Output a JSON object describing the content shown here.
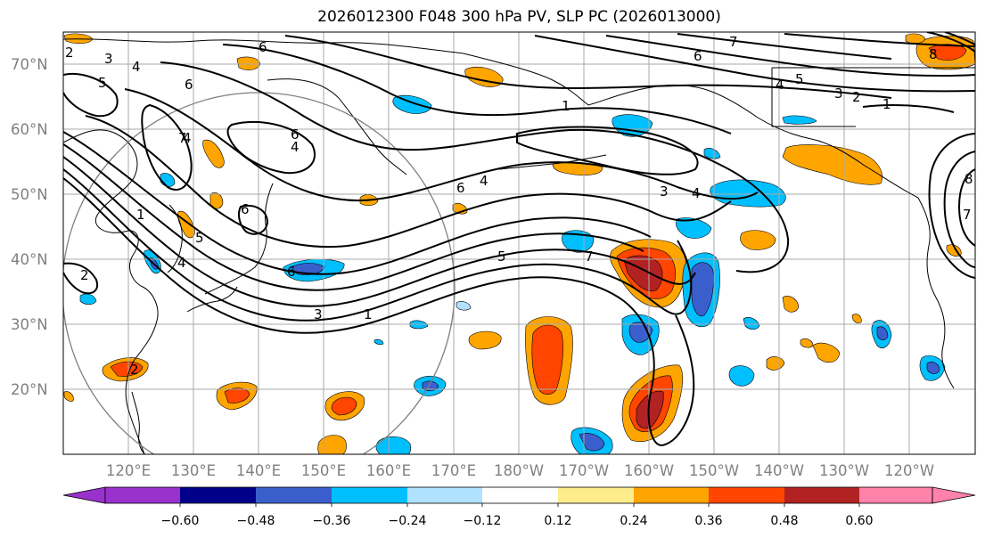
{
  "title": "2026012300 F048 300 hPa PV, SLP PC (2026013000)",
  "lat_labels": [
    "70°N",
    "60°N",
    "50°N",
    "40°N",
    "30°N",
    "20°N"
  ],
  "lon_labels": [
    "120°E",
    "130°E",
    "140°E",
    "150°E",
    "160°E",
    "170°E",
    "180°W",
    "170°W",
    "160°W",
    "150°W",
    "140°W",
    "130°W",
    "120°W"
  ],
  "colorbar": {
    "ticks": [
      "−0.60",
      "−0.48",
      "−0.36",
      "−0.24",
      "−0.12",
      "0.12",
      "0.24",
      "0.36",
      "0.48",
      "0.60"
    ],
    "colors": [
      "#9932cc",
      "#00008b",
      "#3a5fcd",
      "#00bfff",
      "#b0e2ff",
      "#ffffff",
      "#ffec8b",
      "#ffa500",
      "#ff4500",
      "#b22222",
      "#ff82ab"
    ],
    "extend": "both"
  },
  "contour_labels": [
    "2",
    "3",
    "5",
    "4",
    "6",
    "6",
    "4",
    "6",
    "4",
    "1",
    "5",
    "4",
    "2",
    "2",
    "6",
    "6",
    "4",
    "3",
    "1",
    "5",
    "7",
    "3",
    "4",
    "7",
    "5",
    "3",
    "2",
    "1",
    "6",
    "1",
    "7",
    "4",
    "8",
    "6",
    "7",
    "8"
  ]
}
